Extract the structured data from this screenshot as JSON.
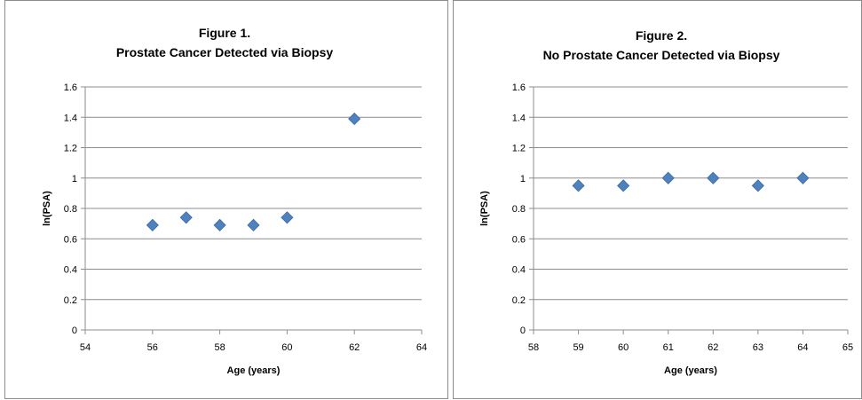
{
  "chart_data": [
    {
      "type": "scatter",
      "title_lines": [
        "Figure 1.",
        "Prostate Cancer Detected via Biopsy"
      ],
      "xlabel": "Age (years)",
      "ylabel": "ln(PSA)",
      "xlim": [
        54,
        64
      ],
      "ylim": [
        0,
        1.6
      ],
      "x_ticks": [
        54,
        56,
        58,
        60,
        62,
        64
      ],
      "y_ticks": [
        0,
        0.2,
        0.4,
        0.6,
        0.8,
        1,
        1.2,
        1.4,
        1.6
      ],
      "grid": "horizontal",
      "marker": "diamond",
      "marker_color": "#4f81bd",
      "series": [
        {
          "x": [
            56,
            57,
            58,
            59,
            60,
            62
          ],
          "y": [
            0.69,
            0.74,
            0.69,
            0.69,
            0.74,
            1.39
          ]
        }
      ]
    },
    {
      "type": "scatter",
      "title_lines": [
        "Figure 2.",
        "No Prostate Cancer Detected via Biopsy"
      ],
      "xlabel": "Age (years)",
      "ylabel": "ln(PSA)",
      "xlim": [
        58,
        65
      ],
      "ylim": [
        0,
        1.6
      ],
      "x_ticks": [
        58,
        59,
        60,
        61,
        62,
        63,
        64,
        65
      ],
      "y_ticks": [
        0,
        0.2,
        0.4,
        0.6,
        0.8,
        1,
        1.2,
        1.4,
        1.6
      ],
      "grid": "horizontal",
      "marker": "diamond",
      "marker_color": "#4f81bd",
      "series": [
        {
          "x": [
            59,
            60,
            61,
            62,
            63,
            64
          ],
          "y": [
            0.95,
            0.95,
            1.0,
            1.0,
            0.95,
            1.0
          ]
        }
      ]
    }
  ]
}
